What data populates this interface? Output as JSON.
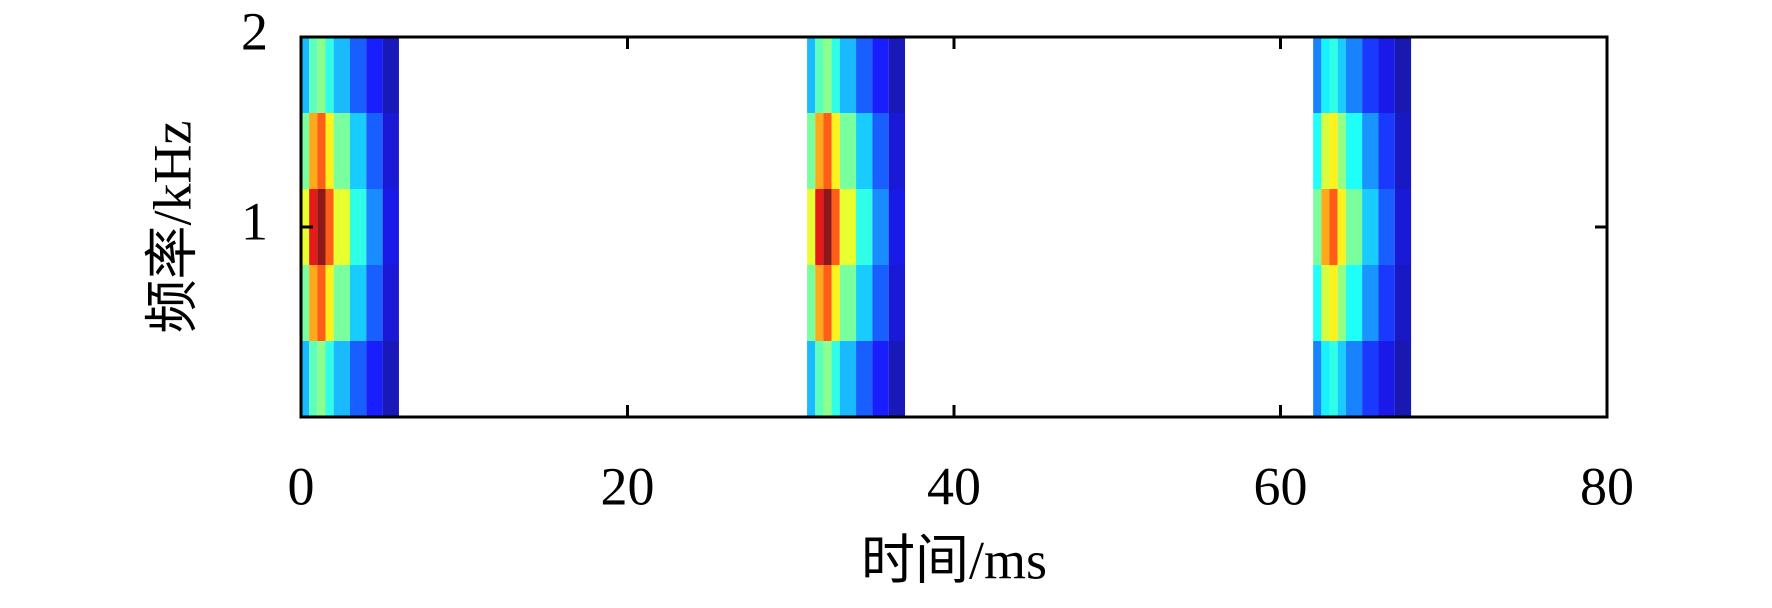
{
  "chart_data": {
    "type": "contour",
    "x_label": "时间/ms",
    "y_label": "频率/kHz",
    "x": [
      0,
      0.5,
      1,
      1.5,
      2,
      3,
      4,
      5,
      31,
      31.5,
      32,
      32.5,
      33,
      34,
      35,
      36,
      62,
      62.5,
      63,
      63.5,
      64,
      65,
      66,
      67
    ],
    "y": [
      0.2,
      0.6,
      1,
      1.4,
      1.8
    ],
    "z": [
      [
        0.3,
        0.45,
        0.5,
        0.4,
        0.3,
        0.2,
        0.13,
        0.05,
        0.3,
        0.45,
        0.5,
        0.4,
        0.3,
        0.2,
        0.13,
        0.05,
        0.24,
        0.36,
        0.4,
        0.32,
        0.24,
        0.16,
        0.1,
        0.04
      ],
      [
        0.48,
        0.72,
        0.8,
        0.64,
        0.48,
        0.32,
        0.2,
        0.08,
        0.48,
        0.72,
        0.8,
        0.64,
        0.48,
        0.32,
        0.2,
        0.08,
        0.38,
        0.58,
        0.64,
        0.51,
        0.38,
        0.26,
        0.16,
        0.06
      ],
      [
        0.6,
        0.9,
        1,
        0.8,
        0.6,
        0.4,
        0.25,
        0.1,
        0.6,
        0.9,
        1,
        0.8,
        0.6,
        0.4,
        0.25,
        0.1,
        0.48,
        0.72,
        0.8,
        0.64,
        0.48,
        0.32,
        0.2,
        0.08
      ],
      [
        0.48,
        0.72,
        0.8,
        0.64,
        0.48,
        0.32,
        0.2,
        0.08,
        0.48,
        0.72,
        0.8,
        0.64,
        0.48,
        0.32,
        0.2,
        0.08,
        0.38,
        0.58,
        0.64,
        0.51,
        0.38,
        0.26,
        0.16,
        0.06
      ],
      [
        0.3,
        0.45,
        0.5,
        0.4,
        0.3,
        0.2,
        0.13,
        0.05,
        0.3,
        0.45,
        0.5,
        0.4,
        0.3,
        0.2,
        0.13,
        0.05,
        0.24,
        0.36,
        0.4,
        0.32,
        0.24,
        0.16,
        0.1,
        0.04
      ]
    ],
    "xlim": [
      0,
      80
    ],
    "ylim": [
      0,
      2
    ],
    "xticks": [
      0,
      20,
      40,
      60,
      80
    ],
    "yticks": [
      1,
      2
    ]
  }
}
